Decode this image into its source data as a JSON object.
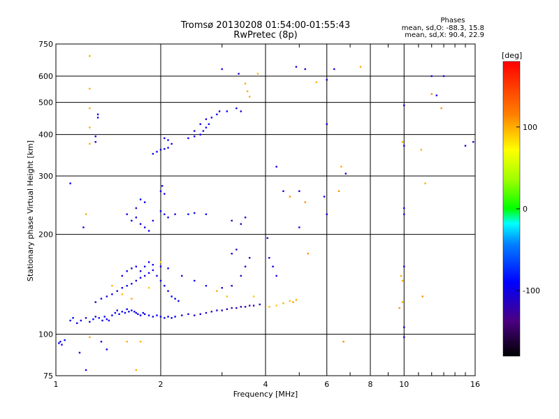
{
  "chart_data": {
    "type": "scatter",
    "title": "Tromsø 20130208 01:54:00-01:55:43",
    "subtitle": "RwPretec (8p)",
    "xlabel": "Frequency [MHz]",
    "ylabel": "Stationary phase Virtual Height [km]",
    "xscale": "log",
    "yscale": "log",
    "xlim": [
      1,
      16
    ],
    "ylim": [
      75,
      750
    ],
    "xticks": [
      1,
      2,
      4,
      6,
      8,
      10,
      16
    ],
    "yticks": [
      75,
      100,
      200,
      300,
      400,
      500,
      600,
      750
    ],
    "grid": true,
    "legend_lines": [
      "Phases",
      "mean, sd,O: -88.3, 15.8",
      "mean, sd,X: 90.4, 22.9"
    ],
    "legend_position": "top-right",
    "colorbar": {
      "label": "[deg]",
      "range": [
        -180,
        180
      ],
      "ticks": [
        100,
        0,
        -100
      ]
    },
    "points": [
      [
        1.02,
        94,
        -95
      ],
      [
        1.03,
        95,
        -95
      ],
      [
        1.04,
        93,
        -100
      ],
      [
        1.06,
        96,
        -90
      ],
      [
        1.1,
        110,
        -95
      ],
      [
        1.12,
        112,
        -90
      ],
      [
        1.15,
        108,
        -100
      ],
      [
        1.18,
        110,
        -95
      ],
      [
        1.22,
        112,
        -100
      ],
      [
        1.25,
        109,
        -95
      ],
      [
        1.28,
        111,
        -90
      ],
      [
        1.3,
        113,
        -100
      ],
      [
        1.33,
        112,
        -95
      ],
      [
        1.36,
        110,
        -100
      ],
      [
        1.38,
        113,
        -90
      ],
      [
        1.4,
        111,
        -95
      ],
      [
        1.42,
        110,
        -100
      ],
      [
        1.45,
        114,
        -95
      ],
      [
        1.48,
        116,
        -90
      ],
      [
        1.5,
        118,
        -100
      ],
      [
        1.52,
        115,
        -95
      ],
      [
        1.55,
        117,
        -100
      ],
      [
        1.58,
        116,
        -90
      ],
      [
        1.6,
        119,
        -95
      ],
      [
        1.62,
        117,
        -100
      ],
      [
        1.65,
        118,
        -95
      ],
      [
        1.68,
        117,
        -90
      ],
      [
        1.7,
        116,
        -100
      ],
      [
        1.72,
        115,
        -95
      ],
      [
        1.75,
        114,
        -90
      ],
      [
        1.78,
        116,
        -100
      ],
      [
        1.8,
        115,
        -95
      ],
      [
        1.85,
        114,
        -100
      ],
      [
        1.9,
        113,
        -95
      ],
      [
        1.95,
        114,
        -90
      ],
      [
        2.0,
        113,
        -100
      ],
      [
        2.05,
        112,
        -95
      ],
      [
        2.1,
        113,
        -100
      ],
      [
        2.15,
        112,
        -95
      ],
      [
        2.2,
        113,
        -90
      ],
      [
        2.3,
        114,
        -100
      ],
      [
        2.4,
        115,
        -95
      ],
      [
        2.5,
        114,
        -110
      ],
      [
        2.6,
        115,
        -105
      ],
      [
        2.7,
        116,
        -110
      ],
      [
        2.8,
        117,
        -115
      ],
      [
        2.9,
        118,
        -110
      ],
      [
        3.0,
        118,
        -120
      ],
      [
        3.1,
        119,
        -115
      ],
      [
        3.2,
        120,
        -120
      ],
      [
        3.3,
        120,
        -115
      ],
      [
        3.4,
        121,
        -120
      ],
      [
        3.5,
        121,
        -125
      ],
      [
        3.6,
        122,
        -120
      ],
      [
        3.7,
        122,
        -115
      ],
      [
        3.85,
        123,
        -110
      ],
      [
        4.1,
        121,
        95
      ],
      [
        4.3,
        122,
        90
      ],
      [
        4.5,
        124,
        100
      ],
      [
        4.7,
        126,
        95
      ],
      [
        4.8,
        125,
        105
      ],
      [
        4.9,
        127,
        100
      ],
      [
        1.3,
        125,
        -100
      ],
      [
        1.35,
        128,
        -95
      ],
      [
        1.4,
        130,
        -100
      ],
      [
        1.45,
        132,
        -95
      ],
      [
        1.5,
        135,
        -100
      ],
      [
        1.55,
        138,
        -95
      ],
      [
        1.6,
        140,
        -100
      ],
      [
        1.65,
        142,
        -95
      ],
      [
        1.7,
        145,
        -100
      ],
      [
        1.75,
        148,
        -95
      ],
      [
        1.8,
        150,
        -100
      ],
      [
        1.85,
        153,
        -95
      ],
      [
        1.9,
        156,
        -100
      ],
      [
        1.95,
        150,
        -95
      ],
      [
        2.0,
        145,
        -100
      ],
      [
        2.05,
        140,
        -95
      ],
      [
        2.1,
        135,
        -100
      ],
      [
        2.15,
        130,
        -95
      ],
      [
        2.2,
        128,
        -100
      ],
      [
        2.25,
        126,
        -95
      ],
      [
        1.55,
        150,
        -100
      ],
      [
        1.6,
        155,
        -95
      ],
      [
        1.65,
        158,
        -100
      ],
      [
        1.7,
        160,
        -95
      ],
      [
        1.75,
        155,
        -100
      ],
      [
        1.8,
        160,
        -95
      ],
      [
        1.85,
        165,
        -100
      ],
      [
        1.9,
        162,
        -95
      ],
      [
        2.0,
        160,
        -100
      ],
      [
        2.1,
        158,
        -95
      ],
      [
        2.3,
        150,
        -100
      ],
      [
        2.5,
        145,
        -95
      ],
      [
        2.7,
        140,
        -100
      ],
      [
        3.0,
        138,
        -110
      ],
      [
        3.2,
        140,
        -105
      ],
      [
        3.4,
        150,
        -110
      ],
      [
        3.5,
        160,
        -105
      ],
      [
        3.6,
        170,
        -110
      ],
      [
        3.3,
        180,
        -115
      ],
      [
        3.2,
        175,
        -110
      ],
      [
        4.05,
        195,
        -100
      ],
      [
        4.1,
        170,
        -100
      ],
      [
        4.2,
        160,
        -95
      ],
      [
        4.3,
        150,
        -100
      ],
      [
        1.45,
        140,
        100
      ],
      [
        1.55,
        132,
        95
      ],
      [
        1.65,
        128,
        100
      ],
      [
        1.85,
        138,
        90
      ],
      [
        2.0,
        165,
        85
      ],
      [
        2.9,
        135,
        100
      ],
      [
        3.1,
        130,
        95
      ],
      [
        3.7,
        130,
        90
      ],
      [
        1.6,
        230,
        -100
      ],
      [
        1.65,
        220,
        -95
      ],
      [
        1.7,
        225,
        -100
      ],
      [
        1.75,
        215,
        -95
      ],
      [
        1.8,
        210,
        -100
      ],
      [
        1.85,
        205,
        -95
      ],
      [
        1.9,
        220,
        -100
      ],
      [
        2.0,
        235,
        -95
      ],
      [
        2.05,
        230,
        -100
      ],
      [
        2.1,
        225,
        -95
      ],
      [
        2.2,
        230,
        -100
      ],
      [
        2.4,
        230,
        -95
      ],
      [
        2.5,
        232,
        -100
      ],
      [
        2.7,
        230,
        -95
      ],
      [
        3.2,
        220,
        -110
      ],
      [
        3.4,
        215,
        -115
      ],
      [
        3.5,
        225,
        -110
      ],
      [
        1.7,
        240,
        -100
      ],
      [
        1.75,
        255,
        -90
      ],
      [
        1.8,
        250,
        -95
      ],
      [
        1.9,
        350,
        -100
      ],
      [
        1.95,
        355,
        -95
      ],
      [
        2.0,
        360,
        -100
      ],
      [
        2.05,
        362,
        -95
      ],
      [
        2.1,
        365,
        -100
      ],
      [
        2.15,
        375,
        -95
      ],
      [
        2.05,
        390,
        -100
      ],
      [
        2.1,
        385,
        -95
      ],
      [
        2.4,
        390,
        -100
      ],
      [
        2.5,
        395,
        -95
      ],
      [
        2.6,
        400,
        -100
      ],
      [
        2.65,
        410,
        -95
      ],
      [
        2.7,
        420,
        -100
      ],
      [
        2.75,
        430,
        -95
      ],
      [
        2.8,
        450,
        -100
      ],
      [
        2.9,
        460,
        -95
      ],
      [
        2.95,
        470,
        -100
      ],
      [
        3.1,
        470,
        -95
      ],
      [
        2.5,
        410,
        -100
      ],
      [
        2.6,
        430,
        -95
      ],
      [
        2.7,
        445,
        -100
      ],
      [
        2.0,
        270,
        -100
      ],
      [
        2.02,
        280,
        -95
      ],
      [
        2.05,
        265,
        -100
      ],
      [
        1.1,
        285,
        -95
      ],
      [
        1.2,
        210,
        -100
      ],
      [
        1.3,
        395,
        -100
      ],
      [
        1.3,
        380,
        -95
      ],
      [
        1.32,
        460,
        -100
      ],
      [
        1.32,
        450,
        -95
      ],
      [
        1.22,
        230,
        100
      ],
      [
        1.25,
        480,
        100
      ],
      [
        1.25,
        420,
        100
      ],
      [
        1.25,
        550,
        100
      ],
      [
        1.25,
        375,
        100
      ],
      [
        1.25,
        690,
        100
      ],
      [
        1.75,
        95,
        100
      ],
      [
        1.6,
        95,
        100
      ],
      [
        1.35,
        95,
        -100
      ],
      [
        1.4,
        90,
        -95
      ],
      [
        1.17,
        88,
        -100
      ],
      [
        1.22,
        78,
        -95
      ],
      [
        1.25,
        98,
        100
      ],
      [
        1.7,
        78,
        100
      ],
      [
        3.0,
        630,
        -100
      ],
      [
        3.5,
        570,
        100
      ],
      [
        3.55,
        540,
        100
      ],
      [
        3.6,
        520,
        100
      ],
      [
        3.8,
        610,
        100
      ],
      [
        3.4,
        470,
        -100
      ],
      [
        3.3,
        480,
        -95
      ],
      [
        3.35,
        610,
        -100
      ],
      [
        4.3,
        320,
        -100
      ],
      [
        4.5,
        270,
        -100
      ],
      [
        4.7,
        260,
        110
      ],
      [
        5.0,
        270,
        -100
      ],
      [
        5.2,
        250,
        110
      ],
      [
        5.0,
        210,
        -100
      ],
      [
        5.3,
        175,
        110
      ],
      [
        4.9,
        640,
        -100
      ],
      [
        5.2,
        630,
        -100
      ],
      [
        5.6,
        575,
        100
      ],
      [
        6.0,
        585,
        -100
      ],
      [
        6.0,
        430,
        -100
      ],
      [
        5.9,
        260,
        -100
      ],
      [
        6.0,
        230,
        -100
      ],
      [
        6.3,
        630,
        -100
      ],
      [
        6.5,
        270,
        110
      ],
      [
        6.6,
        320,
        100
      ],
      [
        6.8,
        305,
        -100
      ],
      [
        6.7,
        95,
        110
      ],
      [
        7.5,
        640,
        100
      ],
      [
        10.0,
        490,
        -100
      ],
      [
        10.0,
        370,
        -100
      ],
      [
        10.0,
        240,
        -100
      ],
      [
        10.0,
        230,
        -100
      ],
      [
        10.0,
        160,
        -100
      ],
      [
        10.0,
        105,
        -100
      ],
      [
        10.0,
        98,
        -100
      ],
      [
        11.2,
        360,
        100
      ],
      [
        11.5,
        285,
        100
      ],
      [
        11.3,
        130,
        110
      ],
      [
        12.0,
        600,
        -100
      ],
      [
        12.0,
        530,
        110
      ],
      [
        12.4,
        525,
        -100
      ],
      [
        12.8,
        480,
        110
      ],
      [
        13.0,
        600,
        -100
      ],
      [
        15.0,
        370,
        -100
      ],
      [
        15.8,
        380,
        -100
      ],
      [
        9.9,
        380,
        100
      ],
      [
        9.7,
        120,
        110
      ],
      [
        9.9,
        145,
        100
      ],
      [
        9.9,
        125,
        100
      ],
      [
        9.8,
        150,
        100
      ]
    ]
  }
}
